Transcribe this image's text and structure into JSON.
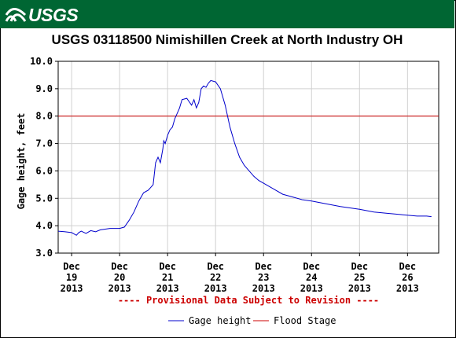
{
  "header": {
    "logo_text": "USGS"
  },
  "chart_data": {
    "type": "line",
    "title": "USGS 03118500 Nimishillen Creek at North Industry OH",
    "ylabel": "Gage height, feet",
    "xlabel": "",
    "ylim": [
      3.0,
      10.0
    ],
    "y_ticks": [
      "3.0",
      "4.0",
      "5.0",
      "6.0",
      "7.0",
      "8.0",
      "9.0",
      "10.0"
    ],
    "x_ticks": [
      {
        "month": "Dec",
        "day": "19",
        "year": "2013"
      },
      {
        "month": "Dec",
        "day": "20",
        "year": "2013"
      },
      {
        "month": "Dec",
        "day": "21",
        "year": "2013"
      },
      {
        "month": "Dec",
        "day": "22",
        "year": "2013"
      },
      {
        "month": "Dec",
        "day": "23",
        "year": "2013"
      },
      {
        "month": "Dec",
        "day": "24",
        "year": "2013"
      },
      {
        "month": "Dec",
        "day": "25",
        "year": "2013"
      },
      {
        "month": "Dec",
        "day": "26",
        "year": "2013"
      }
    ],
    "xlim_days": [
      18.72,
      26.65
    ],
    "grid": true,
    "series": [
      {
        "name": "Gage height",
        "color": "#0000cc",
        "x": [
          18.72,
          18.85,
          19.0,
          19.1,
          19.15,
          19.2,
          19.3,
          19.4,
          19.5,
          19.6,
          19.8,
          20.0,
          20.1,
          20.2,
          20.3,
          20.4,
          20.5,
          20.6,
          20.7,
          20.75,
          20.8,
          20.85,
          20.9,
          20.92,
          20.95,
          21.0,
          21.05,
          21.1,
          21.15,
          21.2,
          21.25,
          21.3,
          21.4,
          21.5,
          21.55,
          21.6,
          21.65,
          21.7,
          21.75,
          21.8,
          21.85,
          21.9,
          22.0,
          22.1,
          22.2,
          22.3,
          22.4,
          22.5,
          22.6,
          22.7,
          22.8,
          22.9,
          23.0,
          23.2,
          23.4,
          23.6,
          23.8,
          24.0,
          24.3,
          24.6,
          25.0,
          25.3,
          25.6,
          25.9,
          26.2,
          26.4,
          26.5
        ],
        "y": [
          3.8,
          3.78,
          3.75,
          3.65,
          3.75,
          3.8,
          3.72,
          3.82,
          3.78,
          3.85,
          3.9,
          3.9,
          3.95,
          4.2,
          4.5,
          4.9,
          5.2,
          5.3,
          5.5,
          6.3,
          6.5,
          6.3,
          6.8,
          7.1,
          7.0,
          7.3,
          7.5,
          7.6,
          7.9,
          8.1,
          8.3,
          8.6,
          8.65,
          8.4,
          8.6,
          8.3,
          8.5,
          9.0,
          9.1,
          9.05,
          9.2,
          9.3,
          9.25,
          9.0,
          8.4,
          7.6,
          7.0,
          6.5,
          6.2,
          6.0,
          5.8,
          5.65,
          5.55,
          5.35,
          5.15,
          5.05,
          4.95,
          4.9,
          4.8,
          4.7,
          4.6,
          4.5,
          4.45,
          4.4,
          4.35,
          4.35,
          4.33
        ]
      },
      {
        "name": "Flood Stage",
        "color": "#cc0000",
        "constant": 8.0
      }
    ],
    "annotation": "---- Provisional Data Subject to Revision ----",
    "legend_position": "bottom-center"
  }
}
